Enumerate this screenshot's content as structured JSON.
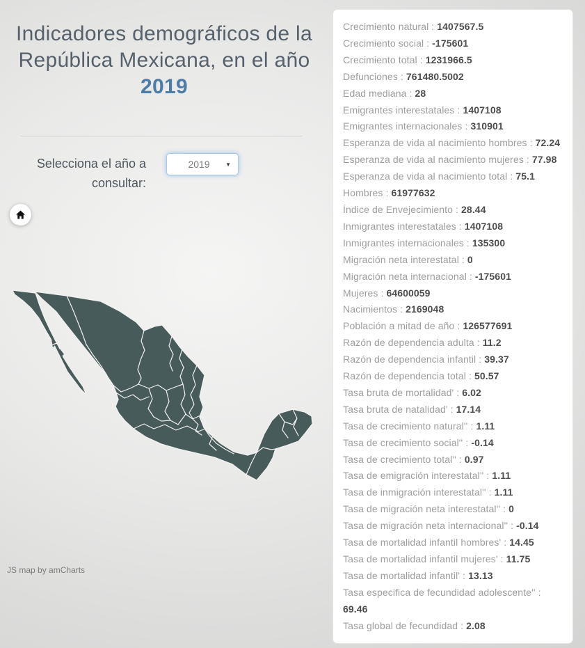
{
  "header": {
    "title_prefix": "Indicadores demográficos de la República Mexicana, en el año ",
    "title_year": "2019"
  },
  "selector": {
    "label": "Selecciona el año a consultar:",
    "value": "2019",
    "arrow_icon": "▼"
  },
  "map": {
    "credit": "JS map by amCharts"
  },
  "colors": {
    "accent_blue": "#4d7ca6",
    "map_fill": "#485b5b",
    "map_border": "#f1f2f0",
    "label_gray": "#9d9d9d",
    "value_gray": "#4d4d4d"
  },
  "separator": " : ",
  "indicators": [
    {
      "label": "Crecimiento natural",
      "value": "1407567.5"
    },
    {
      "label": "Crecimiento social",
      "value": "-175601"
    },
    {
      "label": "Crecimiento total",
      "value": "1231966.5"
    },
    {
      "label": "Defunciones",
      "value": "761480.5002"
    },
    {
      "label": "Edad mediana",
      "value": "28"
    },
    {
      "label": "Emigrantes interestatales",
      "value": "1407108"
    },
    {
      "label": "Emigrantes internacionales",
      "value": "310901"
    },
    {
      "label": "Esperanza de vida al nacimiento hombres",
      "value": "72.24"
    },
    {
      "label": "Esperanza de vida al nacimiento mujeres",
      "value": "77.98"
    },
    {
      "label": "Esperanza de vida al nacimiento total",
      "value": "75.1"
    },
    {
      "label": "Hombres",
      "value": "61977632"
    },
    {
      "label": "Índice de Envejecimiento",
      "value": "28.44"
    },
    {
      "label": "Inmigrantes interestatales",
      "value": "1407108"
    },
    {
      "label": "Inmigrantes internacionales",
      "value": "135300"
    },
    {
      "label": "Migración neta interestatal",
      "value": "0"
    },
    {
      "label": "Migración neta internacional",
      "value": "-175601"
    },
    {
      "label": "Mujeres",
      "value": "64600059"
    },
    {
      "label": "Nacimientos",
      "value": "2169048"
    },
    {
      "label": "Población a mitad de año",
      "value": "126577691"
    },
    {
      "label": "Razón de dependencia adulta",
      "value": "11.2"
    },
    {
      "label": "Razón de dependencia infantil",
      "value": "39.37"
    },
    {
      "label": "Razón de dependencia total",
      "value": "50.57"
    },
    {
      "label": "Tasa bruta de mortalidad'",
      "value": "6.02"
    },
    {
      "label": "Tasa bruta de natalidad'",
      "value": "17.14"
    },
    {
      "label": "Tasa de crecimiento natural''",
      "value": "1.11"
    },
    {
      "label": "Tasa de crecimiento social''",
      "value": "-0.14"
    },
    {
      "label": "Tasa de crecimiento total''",
      "value": "0.97"
    },
    {
      "label": "Tasa de emigración interestatal''",
      "value": "1.11"
    },
    {
      "label": "Tasa de inmigración interestatal''",
      "value": "1.11"
    },
    {
      "label": "Tasa de migración neta interestatal''",
      "value": "0"
    },
    {
      "label": "Tasa de migración neta internacional''",
      "value": "-0.14"
    },
    {
      "label": "Tasa de mortalidad infantil hombres'",
      "value": "14.45"
    },
    {
      "label": "Tasa de mortalidad infantil mujeres'",
      "value": "11.75"
    },
    {
      "label": "Tasa de mortalidad infantil'",
      "value": "13.13"
    },
    {
      "label": "Tasa especifica de fecundidad adolescente''",
      "value": "69.46"
    },
    {
      "label": "Tasa global de fecundidad",
      "value": "2.08"
    }
  ]
}
